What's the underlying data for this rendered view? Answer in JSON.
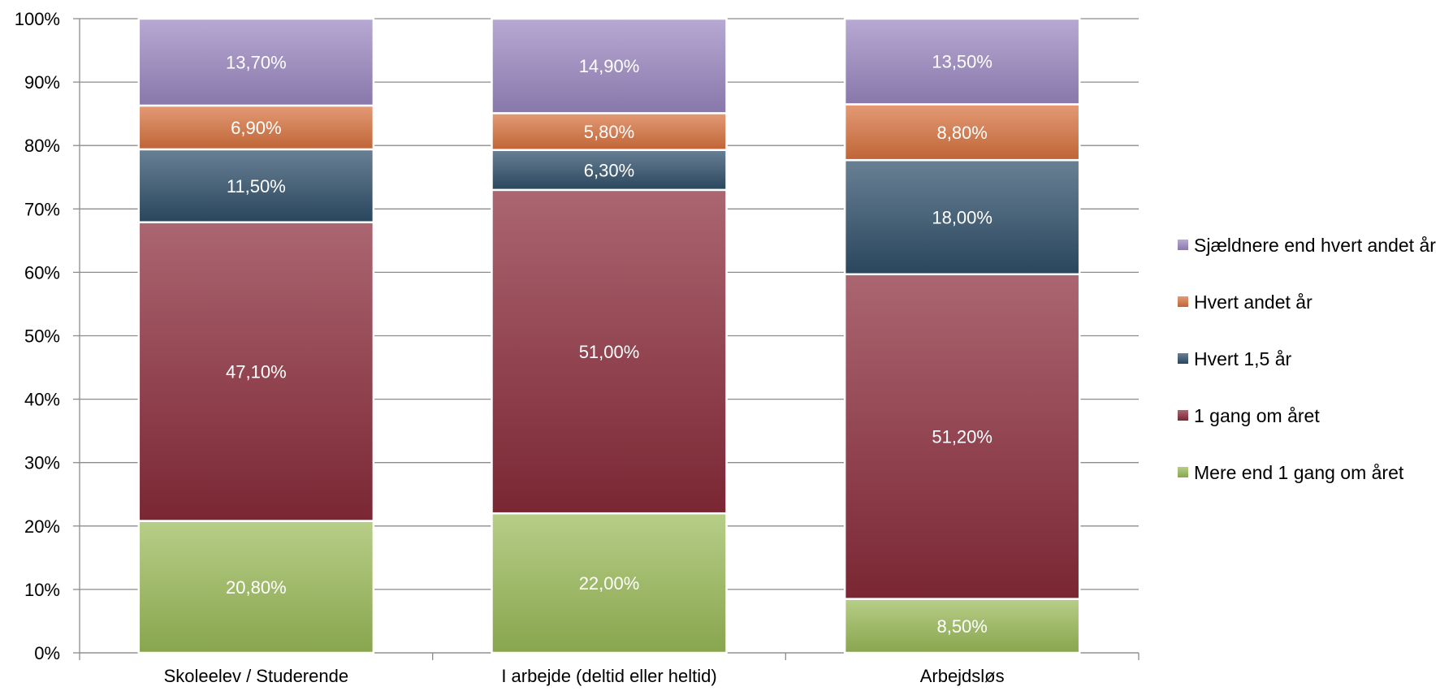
{
  "chart_data": {
    "type": "bar",
    "stacked": true,
    "categories": [
      "Skoleelev / Studerende",
      "I arbejde (deltid eller heltid)",
      "Arbejdsløs"
    ],
    "series": [
      {
        "name": "Mere end 1 gang om året",
        "values": [
          20.8,
          22.0,
          8.5
        ],
        "labels": [
          "20,80%",
          "22,00%",
          "8,50%"
        ],
        "color": "#9bbb59"
      },
      {
        "name": "1 gang om året",
        "values": [
          47.1,
          51.0,
          51.2
        ],
        "labels": [
          "47,10%",
          "51,00%",
          "51,20%"
        ],
        "color": "#8b2b3a"
      },
      {
        "name": "Hvert 1,5 år",
        "values": [
          11.5,
          6.3,
          18.0
        ],
        "labels": [
          "11,50%",
          "6,30%",
          "18,00%"
        ],
        "color": "#2f4f6a"
      },
      {
        "name": "Hvert andet år",
        "values": [
          6.9,
          5.8,
          8.8
        ],
        "labels": [
          "6,90%",
          "5,80%",
          "8,80%"
        ],
        "color": "#d9733f"
      },
      {
        "name": "Sjældnere end hvert andet år",
        "values": [
          13.7,
          14.9,
          13.5
        ],
        "labels": [
          "13,70%",
          "14,90%",
          "13,50%"
        ],
        "color": "#9b88c2"
      }
    ],
    "y_ticks": [
      "0%",
      "10%",
      "20%",
      "30%",
      "40%",
      "50%",
      "60%",
      "70%",
      "80%",
      "90%",
      "100%"
    ],
    "ylim": [
      0,
      100
    ],
    "grid": true,
    "legend_position": "right"
  }
}
